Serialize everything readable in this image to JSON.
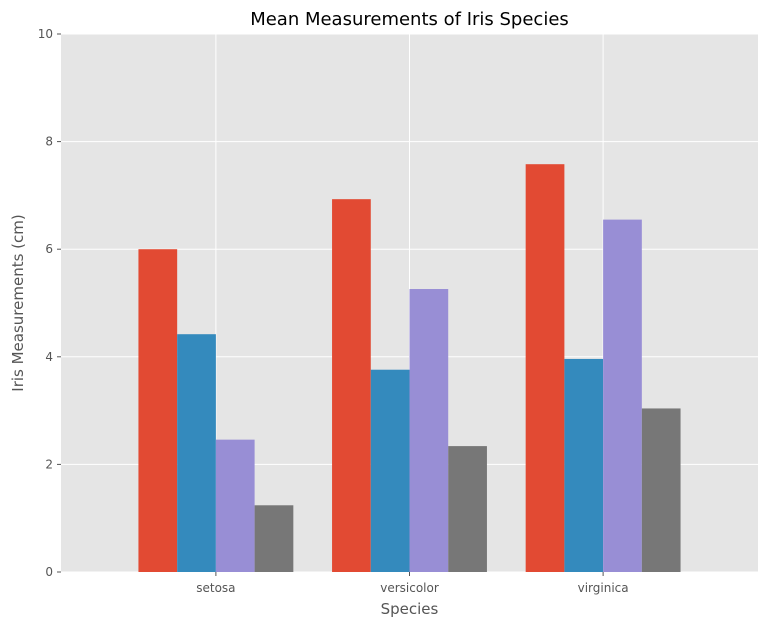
{
  "chart_data": {
    "type": "bar",
    "title": "Mean Measurements of Iris Species",
    "xlabel": "Species",
    "ylabel": "Iris Measurements (cm)",
    "categories": [
      "setosa",
      "versicolor",
      "virginica"
    ],
    "series": [
      {
        "values": [
          6.0,
          6.93,
          7.58
        ],
        "color": "#E24A33"
      },
      {
        "values": [
          4.42,
          3.76,
          3.96
        ],
        "color": "#348ABD"
      },
      {
        "values": [
          2.46,
          5.26,
          6.55
        ],
        "color": "#988ED5"
      },
      {
        "values": [
          1.24,
          2.34,
          3.04
        ],
        "color": "#777777"
      }
    ],
    "ylim": [
      0,
      10
    ],
    "yticks": [
      "0",
      "2",
      "4",
      "6",
      "8",
      "10"
    ],
    "grid": true,
    "background_color": "#E5E5E5",
    "grid_color": "#FFFFFF"
  }
}
